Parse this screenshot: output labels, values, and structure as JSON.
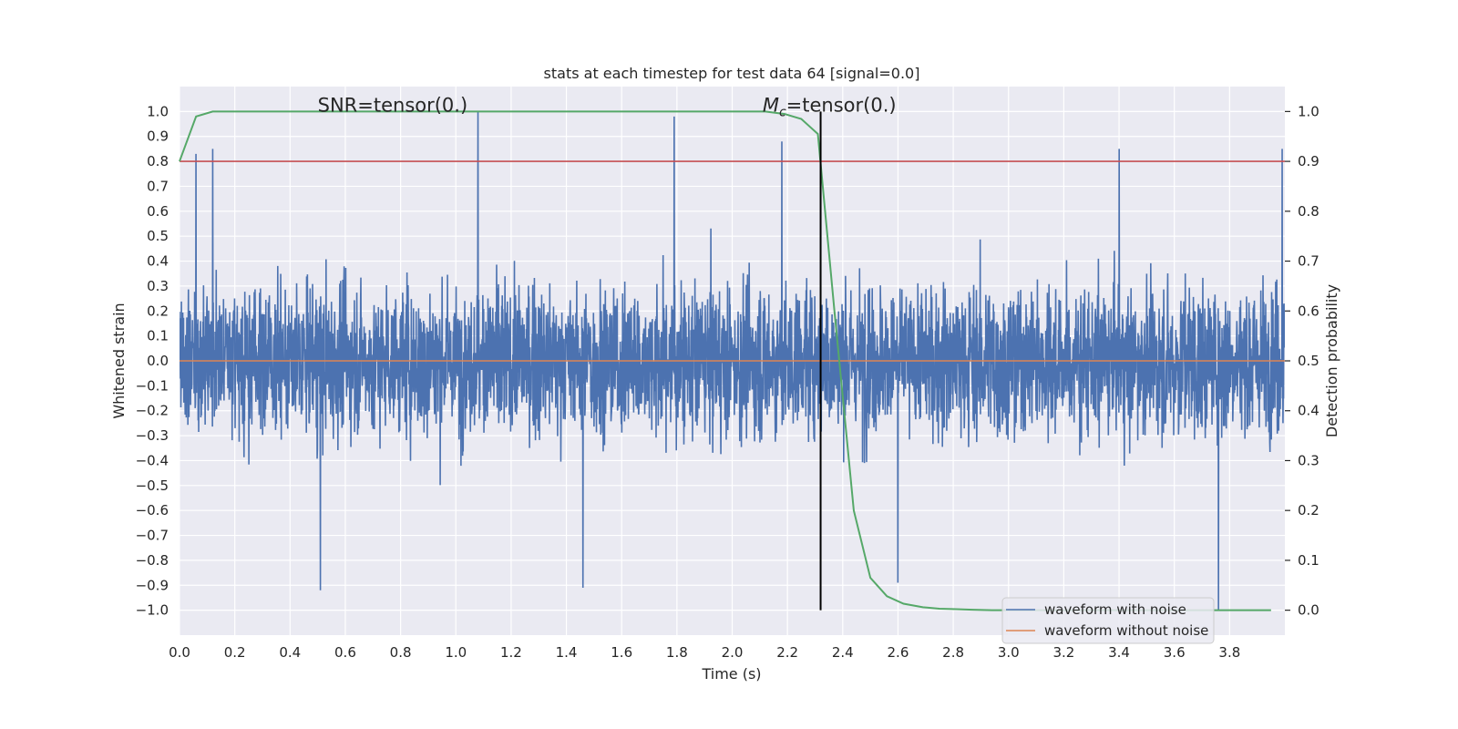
{
  "chart_data": {
    "type": "line",
    "title": "stats at each timestep for test data 64 [signal=0.0]",
    "xlabel": "Time (s)",
    "ylabel_left": "Whitened strain",
    "ylabel_right": "Detection probability",
    "xlim": [
      0.0,
      4.0
    ],
    "ylim_left": [
      -1.1,
      1.1
    ],
    "ylim_right": [
      -0.05,
      1.05
    ],
    "x_ticks": [
      "0.0",
      "0.2",
      "0.4",
      "0.6",
      "0.8",
      "1.0",
      "1.2",
      "1.4",
      "1.6",
      "1.8",
      "2.0",
      "2.2",
      "2.4",
      "2.6",
      "2.8",
      "3.0",
      "3.2",
      "3.4",
      "3.6",
      "3.8"
    ],
    "x_tick_values": [
      0.0,
      0.2,
      0.4,
      0.6,
      0.8,
      1.0,
      1.2,
      1.4,
      1.6,
      1.8,
      2.0,
      2.2,
      2.4,
      2.6,
      2.8,
      3.0,
      3.2,
      3.4,
      3.6,
      3.8
    ],
    "y_left_ticks": [
      "1.0",
      "0.9",
      "0.8",
      "0.7",
      "0.6",
      "0.5",
      "0.4",
      "0.3",
      "0.2",
      "0.1",
      "0.0",
      "−0.1",
      "−0.2",
      "−0.3",
      "−0.4",
      "−0.5",
      "−0.6",
      "−0.7",
      "−0.8",
      "−0.9",
      "−1.0"
    ],
    "y_left_tick_values": [
      1.0,
      0.9,
      0.8,
      0.7,
      0.6,
      0.5,
      0.4,
      0.3,
      0.2,
      0.1,
      0.0,
      -0.1,
      -0.2,
      -0.3,
      -0.4,
      -0.5,
      -0.6,
      -0.7,
      -0.8,
      -0.9,
      -1.0
    ],
    "y_right_ticks": [
      "1.0",
      "0.9",
      "0.8",
      "0.7",
      "0.6",
      "0.5",
      "0.4",
      "0.3",
      "0.2",
      "0.1",
      "0.0"
    ],
    "y_right_tick_values": [
      1.0,
      0.9,
      0.8,
      0.7,
      0.6,
      0.5,
      0.4,
      0.3,
      0.2,
      0.1,
      0.0
    ],
    "annotations": {
      "snr_text": "SNR=tensor(0.)",
      "mc_symbol": "M",
      "mc_subscript": "c",
      "mc_value": "=tensor(0.)"
    },
    "snr_annotation_x": 0.5,
    "mc_annotation_x": 2.11,
    "annotation_y": 1.0,
    "threshold": {
      "value": 0.9,
      "axis": "right",
      "color": "#c44e52"
    },
    "vertical_marker": {
      "x": 2.32,
      "y_range": [
        -1.0,
        1.0
      ],
      "color": "#000000"
    },
    "series": [
      {
        "name": "waveform with noise",
        "axis": "left",
        "color": "#4c72b0",
        "style": "noise",
        "samples": 4096,
        "amplitude_std": 0.25,
        "notable_peaks": [
          {
            "x": 0.06,
            "y": 0.83
          },
          {
            "x": 0.12,
            "y": 0.85
          },
          {
            "x": 0.51,
            "y": -0.92
          },
          {
            "x": 1.08,
            "y": 1.0
          },
          {
            "x": 1.46,
            "y": -0.91
          },
          {
            "x": 1.79,
            "y": 0.98
          },
          {
            "x": 2.18,
            "y": 0.88
          },
          {
            "x": 2.6,
            "y": -0.89
          },
          {
            "x": 3.4,
            "y": 0.85
          },
          {
            "x": 3.76,
            "y": -1.0
          },
          {
            "x": 3.99,
            "y": 0.85
          }
        ]
      },
      {
        "name": "waveform without noise",
        "axis": "left",
        "color": "#dd8452",
        "x": [
          0.0,
          4.0
        ],
        "y": [
          0.0,
          0.0
        ]
      },
      {
        "name": "detection probability",
        "axis": "right",
        "color": "#55a868",
        "x": [
          0.0,
          0.06,
          0.12,
          0.19,
          0.25,
          2.12,
          2.19,
          2.25,
          2.31,
          2.37,
          2.44,
          2.5,
          2.56,
          2.62,
          2.69,
          2.75,
          2.81,
          2.87,
          2.94,
          3.0,
          3.5,
          3.95
        ],
        "y": [
          0.9,
          0.99,
          1.0,
          1.0,
          1.0,
          1.0,
          0.995,
          0.985,
          0.955,
          0.6,
          0.2,
          0.065,
          0.028,
          0.013,
          0.006,
          0.003,
          0.002,
          0.001,
          0.0,
          0.0,
          0.0,
          0.0
        ]
      }
    ],
    "legend": {
      "placement": "lower-right",
      "entries": [
        "waveform with noise",
        "waveform without noise"
      ]
    },
    "grid": true,
    "colors": {
      "plot_background": "#eaeaf2",
      "grid": "#ffffff",
      "noise": "#4c72b0",
      "clean": "#dd8452",
      "probability": "#55a868",
      "threshold": "#c44e52",
      "marker": "#000000"
    }
  }
}
